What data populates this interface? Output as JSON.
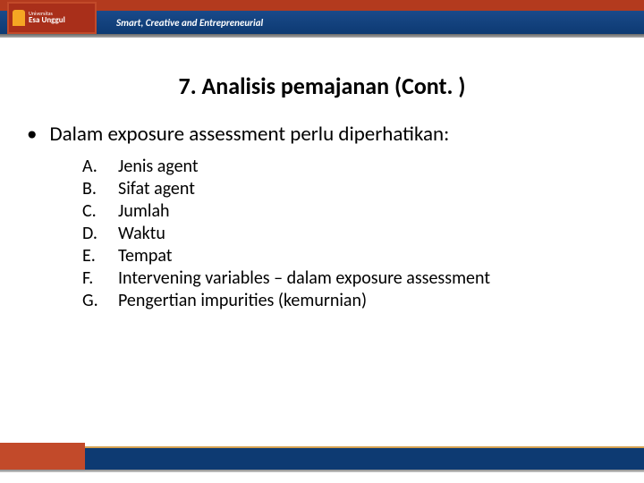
{
  "header": {
    "university_small": "Universitas",
    "university_name": "Esa Unggul",
    "tagline": "Smart, Creative and Entrepreneurial"
  },
  "slide": {
    "title": "7. Analisis pemajanan (Cont. )",
    "bullet_main": "Dalam exposure assessment perlu diperhatikan:",
    "items": [
      {
        "letter": "A.",
        "text": "Jenis agent"
      },
      {
        "letter": "B.",
        "text": "Sifat agent"
      },
      {
        "letter": "C.",
        "text": "Jumlah"
      },
      {
        "letter": "D.",
        "text": "Waktu"
      },
      {
        "letter": "E.",
        "text": "Tempat"
      },
      {
        "letter": "F.",
        "text": "Intervening variables – dalam exposure assessment"
      },
      {
        "letter": "G.",
        "text": "Pengertian impurities (kemurnian)"
      }
    ]
  },
  "colors": {
    "header_orange": "#b33a1e",
    "header_blue": "#0d3a72",
    "footer_orange": "#c24a2a",
    "gold_accent": "#d4a050",
    "text": "#000000",
    "background": "#ffffff"
  }
}
